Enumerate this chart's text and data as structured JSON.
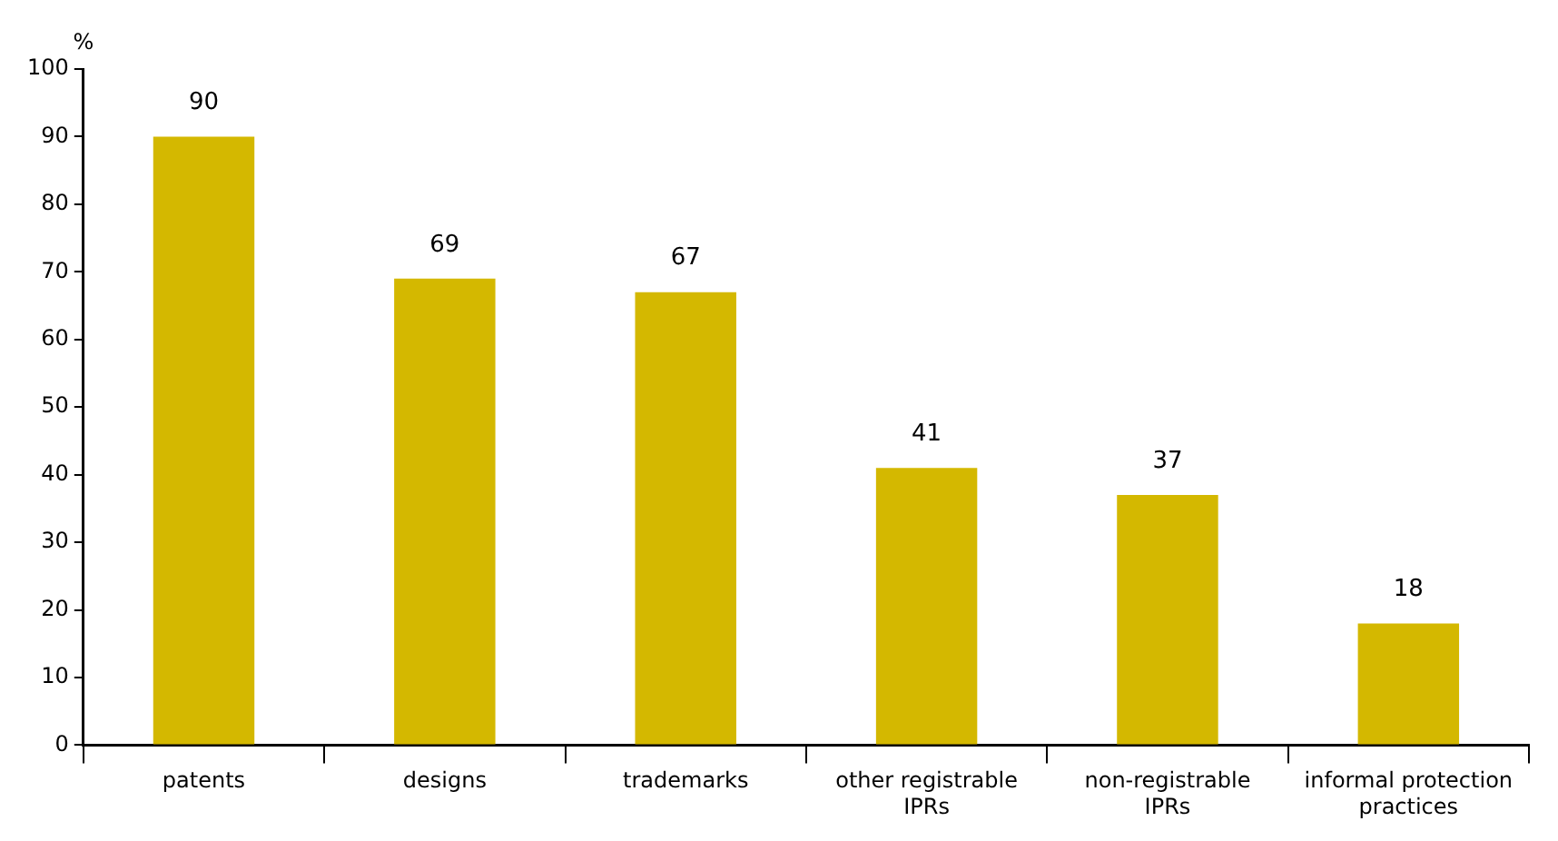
{
  "chart_data": {
    "type": "bar",
    "ylabel": "%",
    "categories": [
      "patents",
      "designs",
      "trademarks",
      "other registrable IPRs",
      "non-registrable IPRs",
      "informal protection practices"
    ],
    "values": [
      90,
      69,
      67,
      41,
      37,
      18
    ],
    "color": "#d4b800",
    "ylim": [
      0,
      100
    ],
    "yticks": [
      0,
      10,
      20,
      30,
      40,
      50,
      60,
      70,
      80,
      90,
      100
    ],
    "grid": false,
    "legend": false,
    "data_labels": true
  }
}
